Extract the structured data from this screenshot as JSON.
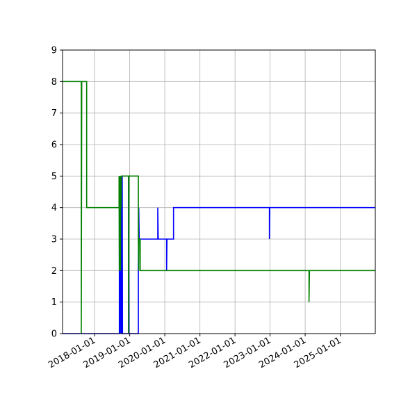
{
  "chart_data": {
    "type": "line",
    "step": true,
    "grid": true,
    "xlim": [
      "2017-02-01",
      "2025-12-31"
    ],
    "ylim": [
      0,
      9
    ],
    "yticks": [
      "0",
      "1",
      "2",
      "3",
      "4",
      "5",
      "6",
      "7",
      "8",
      "9"
    ],
    "xticks": [
      "2018-01-01",
      "2019-01-01",
      "2020-01-01",
      "2021-01-01",
      "2022-01-01",
      "2023-01-01",
      "2024-01-01",
      "2025-01-01"
    ],
    "series": [
      {
        "color": "#0000ff",
        "points": [
          [
            "2017-02-01",
            0
          ],
          [
            "2018-09-15",
            0
          ],
          [
            "2018-09-15",
            5
          ],
          [
            "2018-09-18",
            2
          ],
          [
            "2018-09-21",
            5
          ],
          [
            "2018-09-24",
            0
          ],
          [
            "2018-09-27",
            5
          ],
          [
            "2018-09-30",
            2
          ],
          [
            "2018-10-03",
            5
          ],
          [
            "2018-10-06",
            0
          ],
          [
            "2018-10-09",
            5
          ],
          [
            "2018-10-12",
            0
          ],
          [
            "2018-10-15",
            0
          ],
          [
            "2018-10-15",
            5
          ],
          [
            "2018-10-18",
            0
          ],
          [
            "2018-12-20",
            0
          ],
          [
            "2018-12-20",
            5
          ],
          [
            "2018-12-24",
            0
          ],
          [
            "2019-04-01",
            0
          ],
          [
            "2019-04-01",
            2
          ],
          [
            "2019-04-05",
            4
          ],
          [
            "2019-04-10",
            3
          ],
          [
            "2019-10-20",
            3
          ],
          [
            "2019-10-20",
            4
          ],
          [
            "2019-10-25",
            3
          ],
          [
            "2020-01-20",
            3
          ],
          [
            "2020-01-20",
            2
          ],
          [
            "2020-01-24",
            3
          ],
          [
            "2020-04-01",
            3
          ],
          [
            "2020-04-01",
            4
          ],
          [
            "2022-12-25",
            4
          ],
          [
            "2022-12-25",
            3
          ],
          [
            "2022-12-29",
            4
          ],
          [
            "2025-12-31",
            4
          ]
        ]
      },
      {
        "color": "#008000",
        "points": [
          [
            "2017-02-01",
            8
          ],
          [
            "2017-08-15",
            8
          ],
          [
            "2017-08-15",
            0
          ],
          [
            "2017-08-20",
            8
          ],
          [
            "2017-10-10",
            8
          ],
          [
            "2017-10-10",
            4
          ],
          [
            "2018-09-12",
            4
          ],
          [
            "2018-09-12",
            5
          ],
          [
            "2018-09-15",
            2
          ],
          [
            "2018-09-18",
            5
          ],
          [
            "2018-09-21",
            3
          ],
          [
            "2018-09-24",
            5
          ],
          [
            "2018-09-27",
            2
          ],
          [
            "2018-09-30",
            5
          ],
          [
            "2018-10-03",
            4
          ],
          [
            "2018-10-06",
            5
          ],
          [
            "2018-12-20",
            5
          ],
          [
            "2018-12-20",
            0
          ],
          [
            "2018-12-24",
            5
          ],
          [
            "2019-04-01",
            5
          ],
          [
            "2019-04-01",
            3
          ],
          [
            "2019-04-05",
            2
          ],
          [
            "2019-04-08",
            3
          ],
          [
            "2019-04-20",
            3
          ],
          [
            "2019-04-20",
            2
          ],
          [
            "2024-02-10",
            2
          ],
          [
            "2024-02-10",
            1
          ],
          [
            "2024-02-15",
            2
          ],
          [
            "2025-12-31",
            2
          ]
        ]
      }
    ]
  }
}
